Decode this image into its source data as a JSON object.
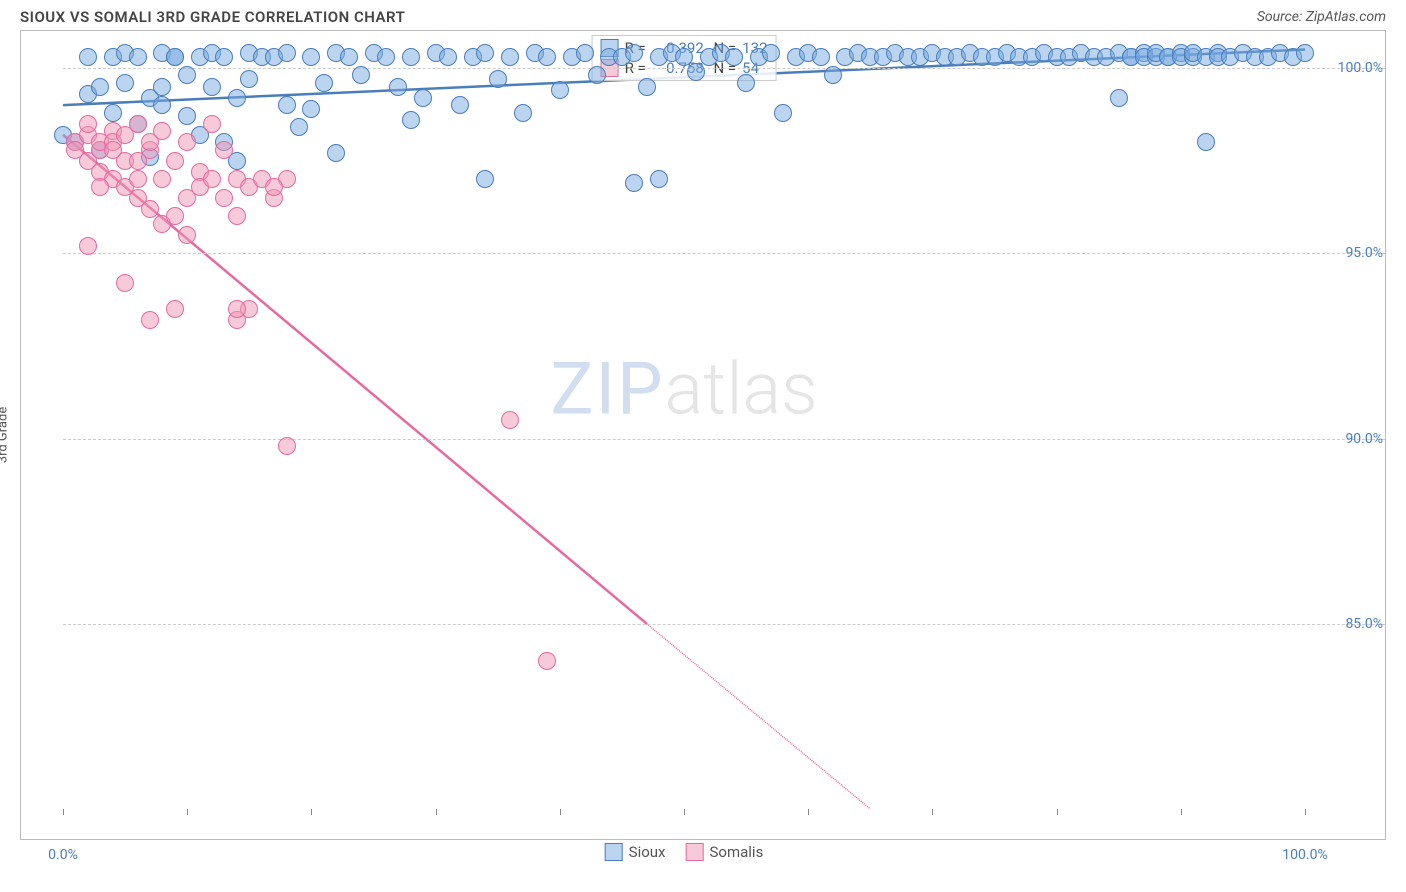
{
  "header": {
    "title": "SIOUX VS SOMALI 3RD GRADE CORRELATION CHART",
    "source": "Source: ZipAtlas.com"
  },
  "chart": {
    "type": "scatter",
    "y_axis_label": "3rd Grade",
    "xlim": [
      0,
      100
    ],
    "ylim": [
      80,
      101
    ],
    "x_tick_step": 10,
    "y_ticks": [
      85,
      90,
      95,
      100
    ],
    "y_tick_labels": [
      "85.0%",
      "90.0%",
      "95.0%",
      "100.0%"
    ],
    "x_start_label": "0.0%",
    "x_end_label": "100.0%",
    "background_color": "#ffffff",
    "grid_color": "#cccccc",
    "border_color": "#bbbbbb",
    "axis_label_color": "#4a7ebb",
    "series": [
      {
        "name": "Sioux",
        "color_fill": "rgba(120,170,225,0.5)",
        "color_stroke": "#4a7ebb",
        "marker_radius": 9,
        "R": "0.392",
        "N": "132",
        "trend": {
          "x1": 0,
          "y1": 99.0,
          "x2": 100,
          "y2": 100.5,
          "dash": false
        },
        "points": [
          [
            0,
            98.2
          ],
          [
            1,
            98.0
          ],
          [
            2,
            99.3
          ],
          [
            2,
            100.3
          ],
          [
            3,
            99.5
          ],
          [
            3,
            97.8
          ],
          [
            4,
            100.3
          ],
          [
            4,
            98.8
          ],
          [
            5,
            99.6
          ],
          [
            5,
            100.4
          ],
          [
            6,
            98.5
          ],
          [
            6,
            100.3
          ],
          [
            7,
            99.2
          ],
          [
            7,
            97.6
          ],
          [
            8,
            100.4
          ],
          [
            8,
            99.0
          ],
          [
            9,
            100.3
          ],
          [
            9,
            100.3
          ],
          [
            10,
            99.8
          ],
          [
            10,
            98.7
          ],
          [
            11,
            100.3
          ],
          [
            12,
            99.5
          ],
          [
            12,
            100.4
          ],
          [
            13,
            100.3
          ],
          [
            13,
            98.0
          ],
          [
            14,
            99.2
          ],
          [
            15,
            100.4
          ],
          [
            15,
            99.7
          ],
          [
            16,
            100.3
          ],
          [
            17,
            100.3
          ],
          [
            18,
            99.0
          ],
          [
            18,
            100.4
          ],
          [
            19,
            98.4
          ],
          [
            20,
            100.3
          ],
          [
            20,
            98.9
          ],
          [
            21,
            99.6
          ],
          [
            22,
            97.7
          ],
          [
            22,
            100.4
          ],
          [
            23,
            100.3
          ],
          [
            24,
            99.8
          ],
          [
            25,
            100.4
          ],
          [
            26,
            100.3
          ],
          [
            27,
            99.5
          ],
          [
            28,
            98.6
          ],
          [
            28,
            100.3
          ],
          [
            29,
            99.2
          ],
          [
            30,
            100.4
          ],
          [
            31,
            100.3
          ],
          [
            32,
            99.0
          ],
          [
            33,
            100.3
          ],
          [
            34,
            97.0
          ],
          [
            34,
            100.4
          ],
          [
            35,
            99.7
          ],
          [
            36,
            100.3
          ],
          [
            37,
            98.8
          ],
          [
            38,
            100.4
          ],
          [
            39,
            100.3
          ],
          [
            40,
            99.4
          ],
          [
            41,
            100.3
          ],
          [
            42,
            100.4
          ],
          [
            43,
            99.8
          ],
          [
            44,
            100.3
          ],
          [
            45,
            100.3
          ],
          [
            46,
            100.4
          ],
          [
            47,
            99.5
          ],
          [
            48,
            97.0
          ],
          [
            48,
            100.3
          ],
          [
            49,
            100.4
          ],
          [
            50,
            100.3
          ],
          [
            51,
            99.9
          ],
          [
            52,
            100.3
          ],
          [
            53,
            100.4
          ],
          [
            54,
            100.3
          ],
          [
            55,
            99.6
          ],
          [
            56,
            100.3
          ],
          [
            57,
            100.4
          ],
          [
            58,
            98.8
          ],
          [
            59,
            100.3
          ],
          [
            60,
            100.4
          ],
          [
            61,
            100.3
          ],
          [
            62,
            99.8
          ],
          [
            63,
            100.3
          ],
          [
            64,
            100.4
          ],
          [
            65,
            100.3
          ],
          [
            66,
            100.3
          ],
          [
            67,
            100.4
          ],
          [
            68,
            100.3
          ],
          [
            69,
            100.3
          ],
          [
            70,
            100.4
          ],
          [
            71,
            100.3
          ],
          [
            72,
            100.3
          ],
          [
            73,
            100.4
          ],
          [
            74,
            100.3
          ],
          [
            75,
            100.3
          ],
          [
            76,
            100.4
          ],
          [
            77,
            100.3
          ],
          [
            78,
            100.3
          ],
          [
            79,
            100.4
          ],
          [
            80,
            100.3
          ],
          [
            81,
            100.3
          ],
          [
            82,
            100.4
          ],
          [
            83,
            100.3
          ],
          [
            84,
            100.3
          ],
          [
            85,
            100.4
          ],
          [
            85,
            99.2
          ],
          [
            86,
            100.3
          ],
          [
            86,
            100.3
          ],
          [
            87,
            100.4
          ],
          [
            87,
            100.3
          ],
          [
            88,
            100.3
          ],
          [
            88,
            100.4
          ],
          [
            89,
            100.3
          ],
          [
            89,
            100.3
          ],
          [
            90,
            100.4
          ],
          [
            90,
            100.3
          ],
          [
            91,
            100.3
          ],
          [
            91,
            100.4
          ],
          [
            92,
            100.3
          ],
          [
            92,
            98.0
          ],
          [
            93,
            100.4
          ],
          [
            93,
            100.3
          ],
          [
            94,
            100.3
          ],
          [
            95,
            100.4
          ],
          [
            96,
            100.3
          ],
          [
            97,
            100.3
          ],
          [
            98,
            100.4
          ],
          [
            99,
            100.3
          ],
          [
            100,
            100.4
          ],
          [
            46,
            96.9
          ],
          [
            8,
            99.5
          ],
          [
            11,
            98.2
          ],
          [
            14,
            97.5
          ]
        ]
      },
      {
        "name": "Somalis",
        "color_fill": "rgba(240,150,180,0.5)",
        "color_stroke": "#e66aa0",
        "marker_radius": 9,
        "R": "-0.758",
        "N": "54",
        "trend": {
          "x1": 0,
          "y1": 98.2,
          "x2": 47,
          "y2": 85.0,
          "dash": false,
          "ext_x2": 65,
          "ext_y2": 80.0
        },
        "points": [
          [
            1,
            98.0
          ],
          [
            1,
            97.8
          ],
          [
            2,
            98.2
          ],
          [
            2,
            97.5
          ],
          [
            2,
            98.5
          ],
          [
            3,
            97.8
          ],
          [
            3,
            98.0
          ],
          [
            3,
            97.2
          ],
          [
            4,
            98.3
          ],
          [
            4,
            97.0
          ],
          [
            4,
            98.0
          ],
          [
            5,
            97.5
          ],
          [
            5,
            96.8
          ],
          [
            5,
            98.2
          ],
          [
            6,
            97.0
          ],
          [
            6,
            98.5
          ],
          [
            6,
            96.5
          ],
          [
            7,
            97.8
          ],
          [
            7,
            96.2
          ],
          [
            7,
            98.0
          ],
          [
            8,
            97.0
          ],
          [
            8,
            95.8
          ],
          [
            8,
            98.3
          ],
          [
            9,
            97.5
          ],
          [
            9,
            96.0
          ],
          [
            10,
            98.0
          ],
          [
            10,
            95.5
          ],
          [
            11,
            97.2
          ],
          [
            11,
            96.8
          ],
          [
            12,
            97.0
          ],
          [
            12,
            98.5
          ],
          [
            13,
            96.5
          ],
          [
            13,
            97.8
          ],
          [
            14,
            96.0
          ],
          [
            14,
            97.0
          ],
          [
            15,
            93.5
          ],
          [
            15,
            96.8
          ],
          [
            16,
            97.0
          ],
          [
            17,
            96.5
          ],
          [
            18,
            97.0
          ],
          [
            2,
            95.2
          ],
          [
            5,
            94.2
          ],
          [
            7,
            93.2
          ],
          [
            9,
            93.5
          ],
          [
            14,
            93.2
          ],
          [
            14,
            93.5
          ],
          [
            17,
            96.8
          ],
          [
            18,
            89.8
          ],
          [
            36,
            90.5
          ],
          [
            39,
            84.0
          ],
          [
            3,
            96.8
          ],
          [
            4,
            97.8
          ],
          [
            6,
            97.5
          ],
          [
            10,
            96.5
          ]
        ]
      }
    ],
    "legend_bottom": [
      {
        "label": "Sioux",
        "fill": "rgba(120,170,225,0.5)",
        "stroke": "#4a7ebb"
      },
      {
        "label": "Somalis",
        "fill": "rgba(240,150,180,0.5)",
        "stroke": "#e66aa0"
      }
    ],
    "watermark": {
      "part1": "ZIP",
      "part2": "atlas"
    }
  }
}
